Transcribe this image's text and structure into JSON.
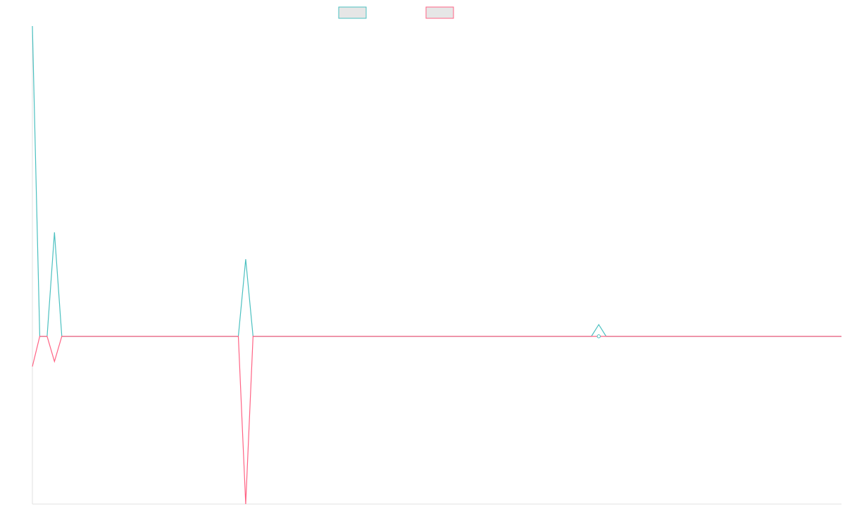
{
  "chart_data": {
    "type": "line",
    "title": "",
    "xlabel": "",
    "ylabel": "",
    "grid": false,
    "legend": "top-center",
    "x_count": 111,
    "ylim": [
      -1.0,
      1.85
    ],
    "colors": {
      "series_a": "#4bc0c0",
      "series_b": "#ff6384",
      "legend_fill": "#e6e6e6",
      "axis": "#e0e0e0"
    },
    "series": [
      {
        "name": "",
        "color": "#4bc0c0",
        "points": [
          [
            0,
            1.85
          ],
          [
            1,
            0.0
          ],
          [
            2,
            0.0
          ],
          [
            3,
            0.62
          ],
          [
            4,
            0.0
          ],
          [
            28,
            0.0
          ],
          [
            29,
            0.46
          ],
          [
            30,
            0.0
          ],
          [
            76,
            0.0
          ],
          [
            77,
            0.07
          ],
          [
            78,
            0.0
          ],
          [
            110,
            0.0
          ]
        ]
      },
      {
        "name": "",
        "color": "#ff6384",
        "points": [
          [
            0,
            -0.18
          ],
          [
            1,
            0.0
          ],
          [
            2,
            0.0
          ],
          [
            3,
            -0.15
          ],
          [
            4,
            0.0
          ],
          [
            28,
            0.0
          ],
          [
            29,
            -1.0
          ],
          [
            30,
            0.0
          ],
          [
            110,
            0.0
          ]
        ]
      }
    ]
  }
}
